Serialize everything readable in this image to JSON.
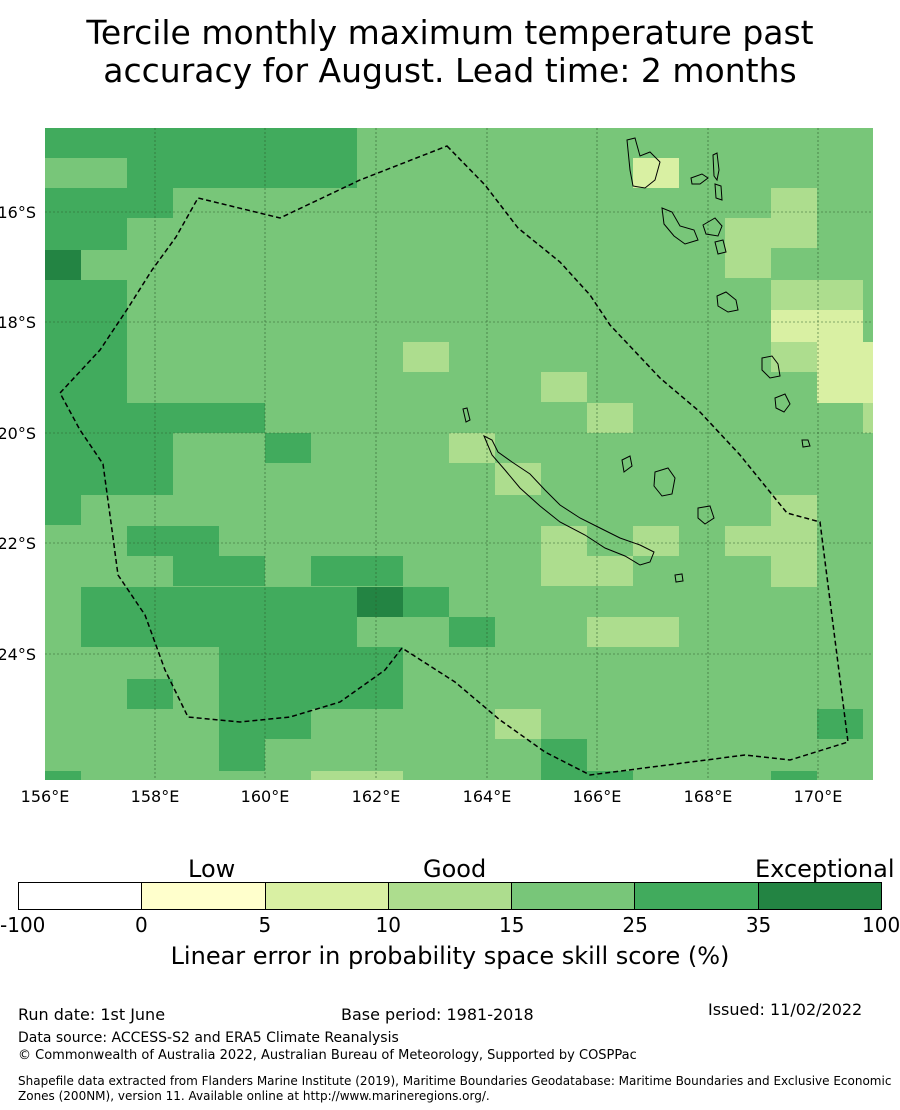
{
  "title": {
    "line1": "Tercile monthly maximum temperature past",
    "line2": "accuracy for August. Lead time: 2 months"
  },
  "map": {
    "lat_ticks": [
      "16°S",
      "18°S",
      "20°S",
      "22°S",
      "24°S"
    ],
    "lon_ticks": [
      "156°E",
      "158°E",
      "160°E",
      "162°E",
      "164°E",
      "166°E",
      "168°E",
      "170°E"
    ],
    "region": "New Caledonia EEZ",
    "base_fill": "#78c679",
    "cell_colors": {
      "35-100": "#238443",
      "25-35": "#41ab5d",
      "15-25": "#78c679",
      "10-15": "#addd8e",
      "5-10": "#d9f0a3"
    }
  },
  "colorbar": {
    "labels": [
      "Low",
      "Good",
      "Exceptional"
    ],
    "ticks": [
      "-100",
      "0",
      "5",
      "10",
      "15",
      "25",
      "35",
      "100"
    ],
    "colors": [
      "#ffffff",
      "#ffffcc",
      "#d9f0a3",
      "#addd8e",
      "#78c679",
      "#41ab5d",
      "#238443"
    ],
    "title": "Linear error in probability space skill score (%)"
  },
  "footer": {
    "run_date": "Run date: 1st June",
    "base_period": "Base period: 1981-2018",
    "issued": "Issued: 11/02/2022",
    "data_source": "Data source: ACCESS-S2 and ERA5 Climate Reanalysis",
    "copyright": "© Commonwealth of Australia 2022, Australian Bureau of Meteorology, Supported by COSPPac",
    "shapefile": "Shapefile data extracted from Flanders Marine Institute (2019), Maritime Boundaries Geodatabase: Maritime Boundaries and Exclusive Economic Zones (200NM), version 11. Available online at http://www.marineregions.org/."
  }
}
